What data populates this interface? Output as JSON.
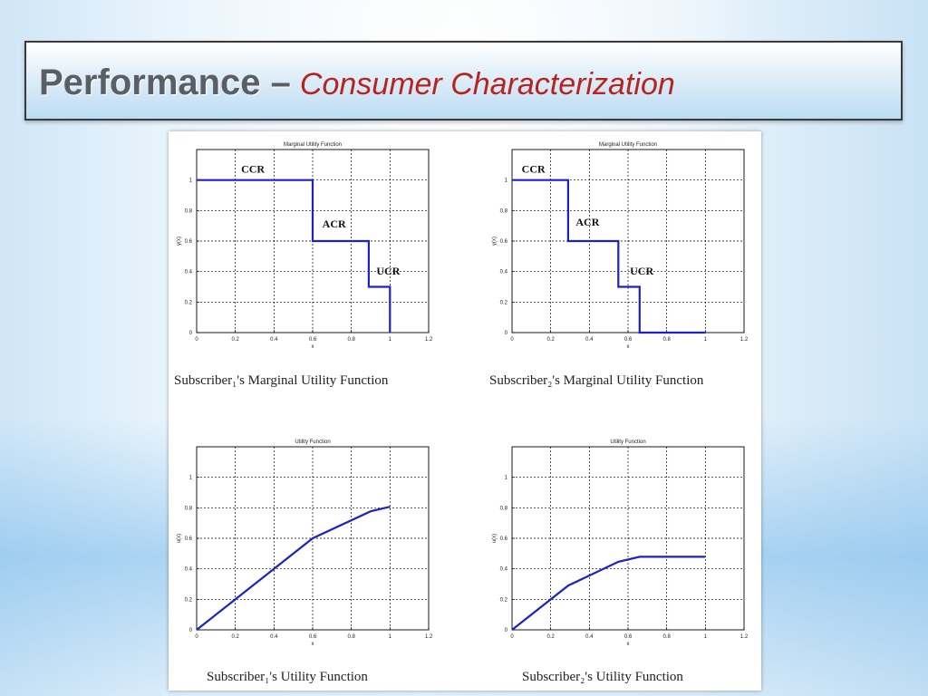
{
  "slide": {
    "title_main": "Performance –",
    "title_sub": "Consumer Characterization"
  },
  "chart_data": [
    {
      "type": "line",
      "title": "Marginal Utility Function",
      "xlabel": "x",
      "ylabel": "y(x)",
      "xlim": [
        0,
        1.2
      ],
      "ylim": [
        0,
        1.2
      ],
      "xticks": [
        "0",
        "0.2",
        "0.4",
        "0.6",
        "0.8",
        "1",
        "1.2"
      ],
      "yticks": [
        "0",
        "0.2",
        "0.4",
        "0.6",
        "0.8",
        "1"
      ],
      "grid": true,
      "series": [
        {
          "x": [
            0,
            0.6,
            0.6,
            0.89,
            0.89,
            1.0,
            1.0
          ],
          "y": [
            1,
            1,
            0.6,
            0.6,
            0.3,
            0.3,
            0
          ],
          "color": "#1a23c8"
        }
      ],
      "annotations": [
        {
          "text": "CCR",
          "x": 0.23,
          "y": 1.05
        },
        {
          "text": "ACR",
          "x": 0.65,
          "y": 0.69
        },
        {
          "text": "UCR",
          "x": 0.93,
          "y": 0.38
        }
      ],
      "caption": "Subscriber₁'s Marginal Utility Function"
    },
    {
      "type": "line",
      "title": "Marginal Utility Function",
      "xlabel": "x",
      "ylabel": "y(x)",
      "xlim": [
        0,
        1.2
      ],
      "ylim": [
        0,
        1.2
      ],
      "xticks": [
        "0",
        "0.2",
        "0.4",
        "0.6",
        "0.8",
        "1",
        "1.2"
      ],
      "yticks": [
        "0",
        "0.2",
        "0.4",
        "0.6",
        "0.8",
        "1"
      ],
      "grid": true,
      "series": [
        {
          "x": [
            0,
            0.29,
            0.29,
            0.55,
            0.55,
            0.66,
            0.66,
            1.0
          ],
          "y": [
            1,
            1,
            0.6,
            0.6,
            0.3,
            0.3,
            0,
            0
          ],
          "color": "#1a23c8"
        }
      ],
      "annotations": [
        {
          "text": "CCR",
          "x": 0.05,
          "y": 1.05
        },
        {
          "text": "ACR",
          "x": 0.33,
          "y": 0.7
        },
        {
          "text": "UCR",
          "x": 0.61,
          "y": 0.38
        }
      ],
      "caption": "Subscriber₂'s Marginal Utility Function"
    },
    {
      "type": "line",
      "title": "Utility Function",
      "xlabel": "x",
      "ylabel": "u(x)",
      "xlim": [
        0,
        1.2
      ],
      "ylim": [
        0,
        1.2
      ],
      "xticks": [
        "0",
        "0.2",
        "0.4",
        "0.6",
        "0.8",
        "1",
        "1.2"
      ],
      "yticks": [
        "0",
        "0.2",
        "0.4",
        "0.6",
        "0.8",
        "1"
      ],
      "grid": true,
      "series": [
        {
          "x": [
            0,
            0.6,
            0.9,
            1.0
          ],
          "y": [
            0,
            0.6,
            0.777,
            0.807
          ],
          "color": "#1a23c8"
        }
      ],
      "annotations": [],
      "caption": "Subscriber₁'s Utility Function"
    },
    {
      "type": "line",
      "title": "Utility Function",
      "xlabel": "x",
      "ylabel": "u(x)",
      "xlim": [
        0,
        1.2
      ],
      "ylim": [
        0,
        1.2
      ],
      "xticks": [
        "0",
        "0.2",
        "0.4",
        "0.6",
        "0.8",
        "1",
        "1.2"
      ],
      "yticks": [
        "0",
        "0.2",
        "0.4",
        "0.6",
        "0.8",
        "1"
      ],
      "grid": true,
      "series": [
        {
          "x": [
            0,
            0.29,
            0.55,
            0.66,
            1.0
          ],
          "y": [
            0,
            0.29,
            0.446,
            0.479,
            0.479
          ],
          "color": "#1a23c8"
        }
      ],
      "annotations": [],
      "caption": "Subscriber₂'s Utility Function"
    }
  ]
}
